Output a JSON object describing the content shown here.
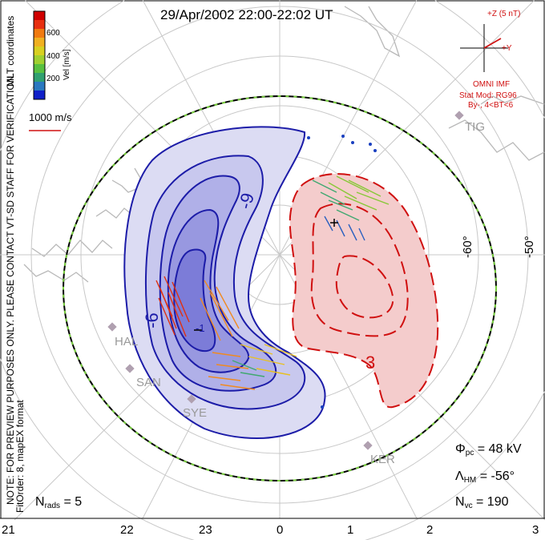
{
  "title": "29/Apr/2002 22:00-22:02 UT",
  "colorbar": {
    "label": "Vel [m/s]",
    "ticks": [
      "600",
      "400",
      "200"
    ],
    "colors": [
      "#d00000",
      "#e83010",
      "#f07a10",
      "#f0b020",
      "#d8d020",
      "#a0d030",
      "#58c040",
      "#30a070",
      "#2a78c0",
      "#1020c8"
    ]
  },
  "coords_label": "MLT coordinates",
  "scale_label": "1000 m/s",
  "warning_text": "NOTE: FOR PREVIEW PURPOSES ONLY. PLEASE CONTACT VT-SD STAFF FOR VERIFICATION.",
  "fit_text": "FitOrder: 8, mapEX format",
  "imf": {
    "z_label": "+Z (5 nT)",
    "y_label": "+Y",
    "source": "OMNI IMF",
    "model": "Stat Mod: RG96",
    "condition": "By-, 4<BT<6"
  },
  "stations": [
    "TIG",
    "HAL",
    "SAN",
    "SYE",
    "KER"
  ],
  "latitude_labels": [
    "-60°",
    "-50°"
  ],
  "contour_labels": [
    "-9",
    "-6",
    "-1",
    "3"
  ],
  "stats": {
    "phi_pc_value": "= 48 kV",
    "lambda_hm_value": "= -56°",
    "n_vc_value": "= 190",
    "n_rads_value": "= 5"
  },
  "mlt_ticks": [
    "21",
    "22",
    "23",
    "0",
    "1",
    "2",
    "3"
  ],
  "palette": {
    "neg_fill": "#c8c8ee",
    "pos_fill": "#f4cccc",
    "neg_line": "#1c1ca8",
    "pos_line": "#d01010",
    "boundary": "#7ad040"
  }
}
